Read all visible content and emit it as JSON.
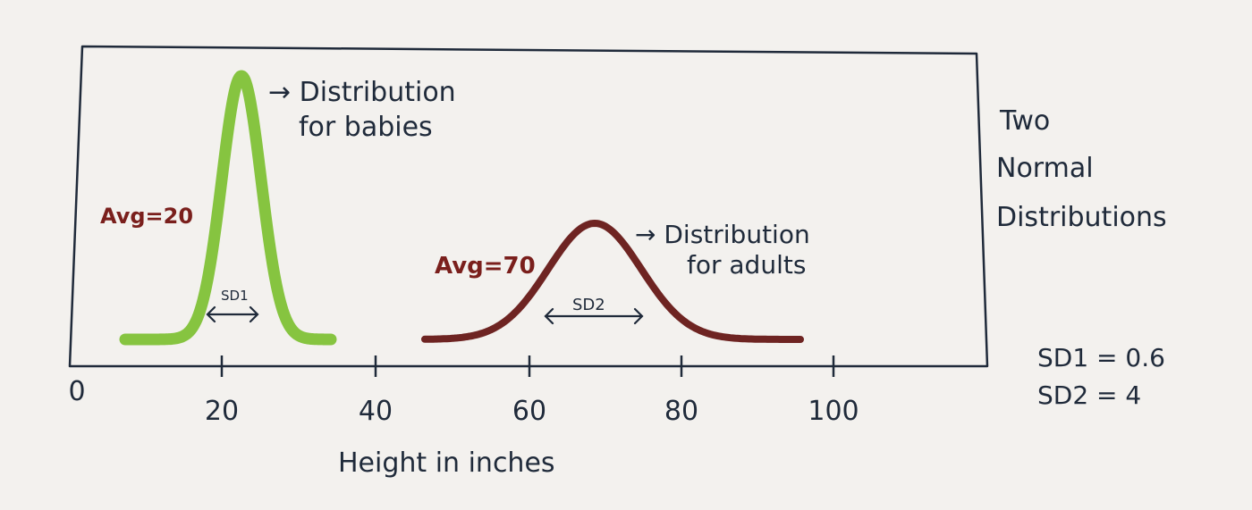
{
  "chart_data": {
    "type": "line",
    "title": "Two Normal Distributions",
    "title_lines": [
      "Two",
      "Normal",
      "Distributions"
    ],
    "xlabel": "Height in inches",
    "ylabel": "",
    "xlim": [
      0,
      100
    ],
    "x_ticks": [
      0,
      20,
      40,
      60,
      80,
      100
    ],
    "grid": false,
    "series": [
      {
        "name": "Distribution for babies",
        "annotation_lines": [
          "→ Distribution",
          "for babies"
        ],
        "mean": 20,
        "sd": 0.6,
        "color": "#86c440",
        "avg_label": "Avg=20",
        "sd_label": "SD1"
      },
      {
        "name": "Distribution for adults",
        "annotation_lines": [
          "→ Distribution",
          "for adults"
        ],
        "mean": 70,
        "sd": 4,
        "color": "#6e2422",
        "avg_label": "Avg=70",
        "sd_label": "SD2"
      }
    ],
    "sd_notes": [
      "SD1 = 0.6",
      "SD2 = 4"
    ]
  },
  "colors": {
    "ink": "#1f2a3a",
    "annotation_red": "#7a1f1c",
    "paper": "#f3f1ee"
  }
}
